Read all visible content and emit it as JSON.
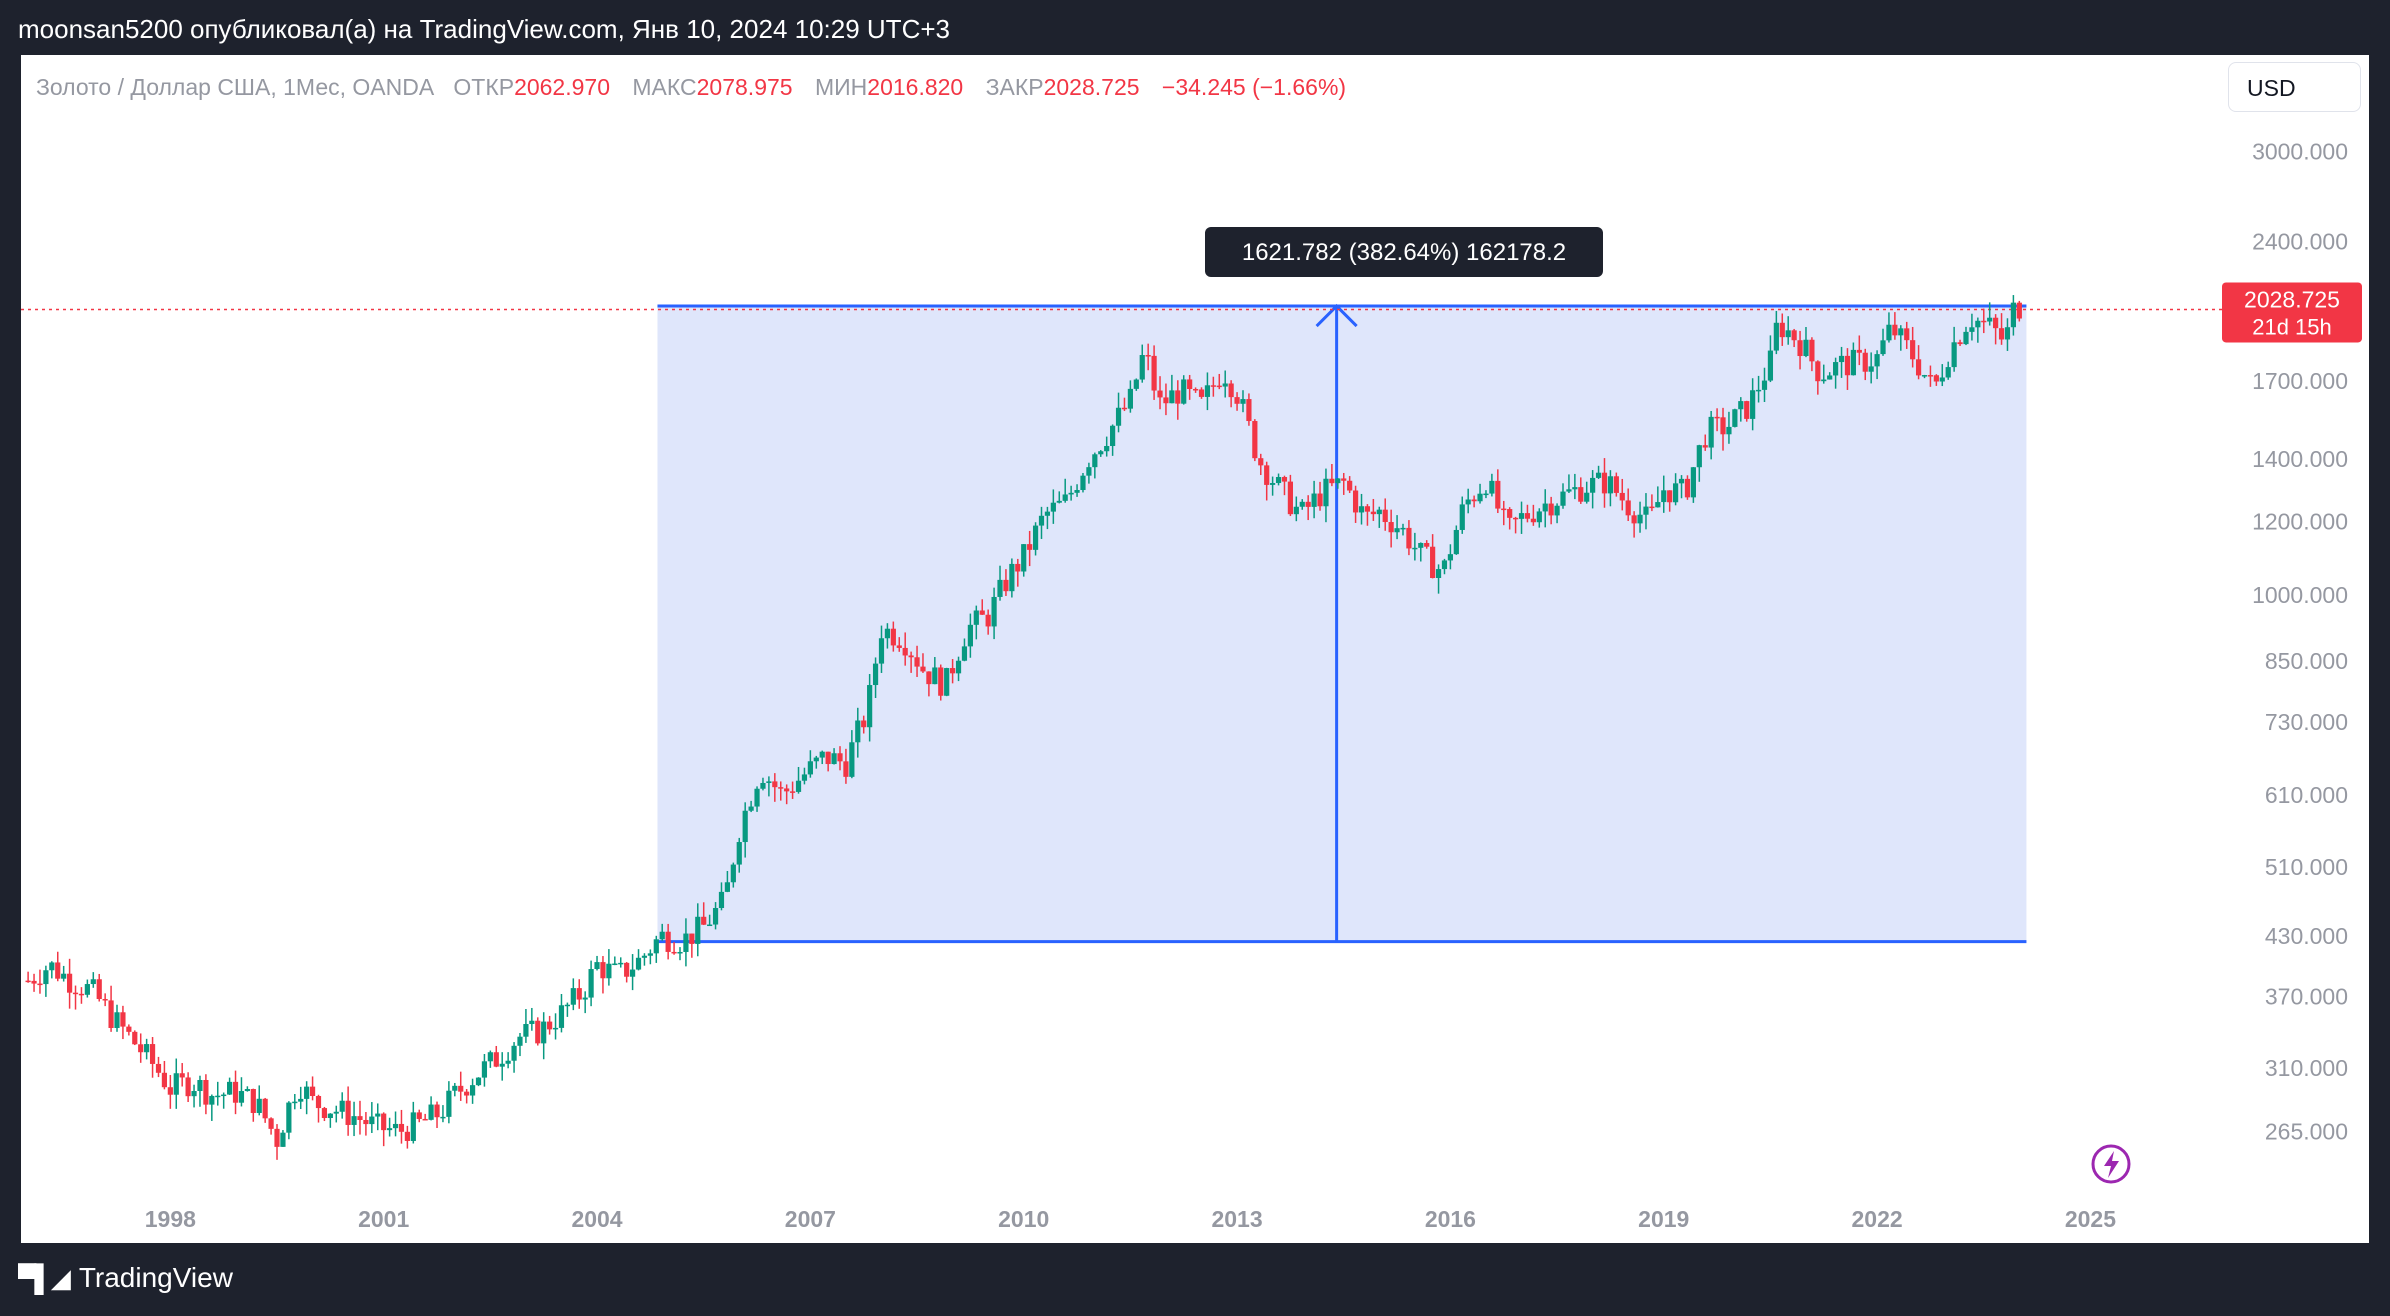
{
  "header": {
    "publisher_line": "moonsan5200 опубликовал(а) на TradingView.com, Янв 10, 2024 10:29 UTC+3"
  },
  "legend": {
    "symbol": "Золото / Доллар США, 1Мес, OANDA",
    "open_label": "ОТКР",
    "open_value": "2062.970",
    "high_label": "МАКС",
    "high_value": "2078.975",
    "low_label": "МИН",
    "low_value": "2016.820",
    "close_label": "ЗАКР",
    "close_value": "2028.725",
    "change": "−34.245 (−1.66%)"
  },
  "currency_button": "USD",
  "price_tag": {
    "price": "2028.725",
    "countdown": "21d 15h",
    "color": "#f23645"
  },
  "measure_tool": {
    "label": "1621.782 (382.64%) 162178.2",
    "low_price": 424,
    "high_price": 2046,
    "start_x": 2004.85,
    "end_x": 2024.1,
    "arrow_x": 2014.4,
    "fill_color": "#dfe6fb",
    "line_color": "#2962ff"
  },
  "colors": {
    "up": "#089981",
    "down": "#f23645",
    "background": "#ffffff"
  },
  "footer": {
    "logo_text": "TradingView"
  },
  "chart_data": {
    "type": "candlestick",
    "title": "Золото / Доллар США, 1Мес, OANDA",
    "y_scale": "log",
    "ylim": [
      235,
      3450
    ],
    "xlim": [
      1995.9,
      2026.4
    ],
    "y_ticks": [
      "3000.000",
      "2400.000",
      "1700.000",
      "1400.000",
      "1200.000",
      "1000.000",
      "850.000",
      "730.000",
      "610.000",
      "510.000",
      "430.000",
      "370.000",
      "310.000",
      "265.000"
    ],
    "x_ticks": [
      "1998",
      "2001",
      "2004",
      "2007",
      "2010",
      "2013",
      "2016",
      "2019",
      "2022",
      "2025"
    ],
    "last_price": 2028.725,
    "monthly_close_series": [
      [
        1996.0,
        385
      ],
      [
        1996.3,
        400
      ],
      [
        1996.6,
        385
      ],
      [
        1996.9,
        375
      ],
      [
        1997.2,
        350
      ],
      [
        1997.5,
        330
      ],
      [
        1997.8,
        310
      ],
      [
        1998.0,
        295
      ],
      [
        1998.3,
        300
      ],
      [
        1998.6,
        290
      ],
      [
        1998.9,
        292
      ],
      [
        1999.2,
        285
      ],
      [
        1999.5,
        260
      ],
      [
        1999.8,
        300
      ],
      [
        2000.0,
        285
      ],
      [
        2000.3,
        280
      ],
      [
        2000.6,
        275
      ],
      [
        2000.9,
        268
      ],
      [
        2001.2,
        265
      ],
      [
        2001.5,
        270
      ],
      [
        2001.8,
        278
      ],
      [
        2002.0,
        290
      ],
      [
        2002.3,
        305
      ],
      [
        2002.6,
        318
      ],
      [
        2002.9,
        335
      ],
      [
        2003.2,
        340
      ],
      [
        2003.5,
        355
      ],
      [
        2003.8,
        375
      ],
      [
        2004.0,
        400
      ],
      [
        2004.3,
        390
      ],
      [
        2004.6,
        405
      ],
      [
        2004.9,
        430
      ],
      [
        2005.2,
        425
      ],
      [
        2005.5,
        440
      ],
      [
        2005.8,
        470
      ],
      [
        2006.0,
        560
      ],
      [
        2006.3,
        650
      ],
      [
        2006.6,
        610
      ],
      [
        2006.9,
        640
      ],
      [
        2007.2,
        670
      ],
      [
        2007.5,
        660
      ],
      [
        2007.8,
        750
      ],
      [
        2008.0,
        920
      ],
      [
        2008.3,
        900
      ],
      [
        2008.6,
        830
      ],
      [
        2008.9,
        800
      ],
      [
        2009.2,
        920
      ],
      [
        2009.5,
        950
      ],
      [
        2009.8,
        1050
      ],
      [
        2010.0,
        1100
      ],
      [
        2010.3,
        1220
      ],
      [
        2010.6,
        1260
      ],
      [
        2010.9,
        1400
      ],
      [
        2011.2,
        1500
      ],
      [
        2011.5,
        1620
      ],
      [
        2011.7,
        1830
      ],
      [
        2011.9,
        1600
      ],
      [
        2012.2,
        1660
      ],
      [
        2012.5,
        1600
      ],
      [
        2012.8,
        1750
      ],
      [
        2013.0,
        1650
      ],
      [
        2013.3,
        1400
      ],
      [
        2013.6,
        1300
      ],
      [
        2013.9,
        1220
      ],
      [
        2014.2,
        1290
      ],
      [
        2014.5,
        1320
      ],
      [
        2014.8,
        1210
      ],
      [
        2015.0,
        1230
      ],
      [
        2015.3,
        1180
      ],
      [
        2015.6,
        1100
      ],
      [
        2015.9,
        1060
      ],
      [
        2016.2,
        1250
      ],
      [
        2016.5,
        1330
      ],
      [
        2016.8,
        1170
      ],
      [
        2017.0,
        1210
      ],
      [
        2017.3,
        1250
      ],
      [
        2017.6,
        1280
      ],
      [
        2017.9,
        1310
      ],
      [
        2018.2,
        1325
      ],
      [
        2018.5,
        1250
      ],
      [
        2018.8,
        1200
      ],
      [
        2019.0,
        1300
      ],
      [
        2019.3,
        1290
      ],
      [
        2019.6,
        1500
      ],
      [
        2019.9,
        1520
      ],
      [
        2020.2,
        1600
      ],
      [
        2020.5,
        1780
      ],
      [
        2020.6,
        1960
      ],
      [
        2020.9,
        1880
      ],
      [
        2021.2,
        1730
      ],
      [
        2021.5,
        1770
      ],
      [
        2021.8,
        1780
      ],
      [
        2022.0,
        1800
      ],
      [
        2022.2,
        1940
      ],
      [
        2022.5,
        1810
      ],
      [
        2022.8,
        1660
      ],
      [
        2023.0,
        1820
      ],
      [
        2023.3,
        1990
      ],
      [
        2023.6,
        1940
      ],
      [
        2023.8,
        1870
      ],
      [
        2023.95,
        2070
      ],
      [
        2024.03,
        2028.725
      ]
    ]
  }
}
